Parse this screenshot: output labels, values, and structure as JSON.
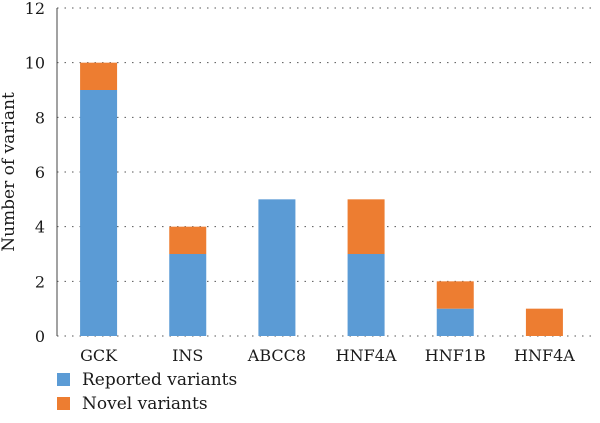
{
  "chart_data": {
    "type": "bar",
    "stacked": true,
    "categories": [
      "GCK",
      "INS",
      "ABCC8",
      "HNF4A",
      "HNF1B",
      "HNF4A"
    ],
    "series": [
      {
        "name": "Reported variants",
        "values": [
          9,
          3,
          5,
          3,
          1,
          0
        ],
        "color": "#5b9bd5"
      },
      {
        "name": "Novel variants",
        "values": [
          1,
          1,
          0,
          2,
          1,
          1
        ],
        "color": "#ed7d31"
      }
    ],
    "ylabel": "Number of variant",
    "xlabel": "",
    "ylim": [
      0,
      12
    ],
    "yticks": [
      0,
      2,
      4,
      6,
      8,
      10,
      12
    ],
    "grid": true,
    "legend_position": "bottom-left"
  }
}
